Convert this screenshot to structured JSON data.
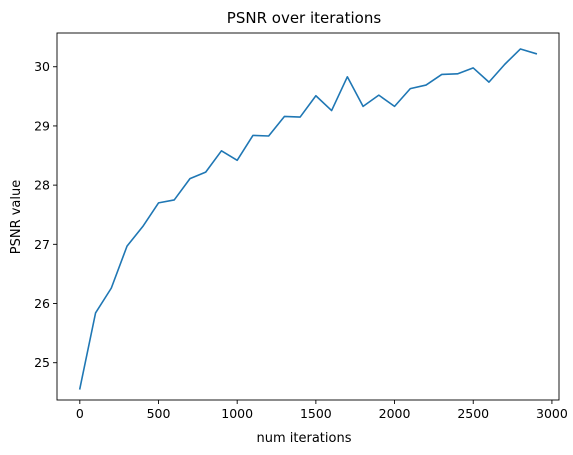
{
  "chart_data": {
    "type": "line",
    "title": "PSNR over iterations",
    "xlabel": "num iterations",
    "ylabel": "PSNR value",
    "xlim": [
      -145,
      3045
    ],
    "ylim": [
      24.37,
      30.57
    ],
    "xticks": [
      0,
      500,
      1000,
      1500,
      2000,
      2500,
      3000
    ],
    "yticks": [
      25,
      26,
      27,
      28,
      29,
      30
    ],
    "grid": false,
    "legend": "none",
    "line_color": "#1f77b4",
    "x": [
      0,
      100,
      200,
      300,
      400,
      500,
      600,
      700,
      800,
      900,
      1000,
      1100,
      1200,
      1300,
      1400,
      1500,
      1600,
      1700,
      1800,
      1900,
      2000,
      2100,
      2200,
      2300,
      2400,
      2500,
      2600,
      2700,
      2800,
      2900
    ],
    "y": [
      24.56,
      25.84,
      26.26,
      26.97,
      27.3,
      27.7,
      27.75,
      28.11,
      28.22,
      28.58,
      28.42,
      28.84,
      28.83,
      29.16,
      29.15,
      29.51,
      29.26,
      29.83,
      29.33,
      29.52,
      29.33,
      29.63,
      29.69,
      29.87,
      29.88,
      29.98,
      29.74,
      30.04,
      30.3,
      30.22
    ]
  }
}
